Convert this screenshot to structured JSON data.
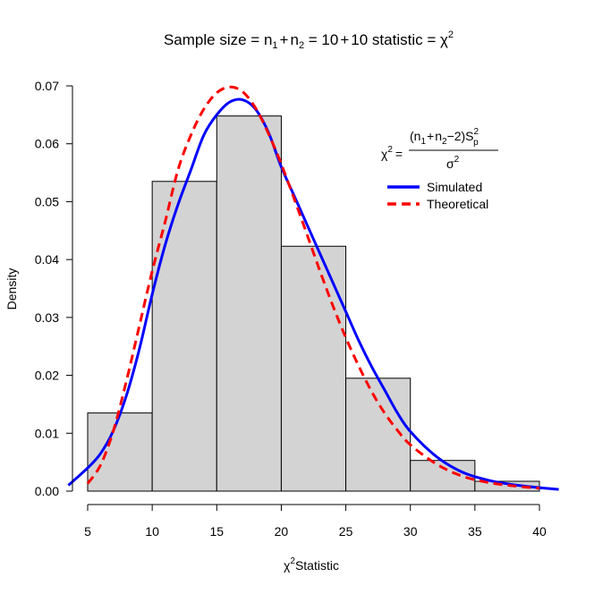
{
  "chart_data": {
    "type": "bar",
    "title_parts": {
      "lead": "Sample size = n",
      "sub1": "1",
      "plus1": "+",
      "n2": "n",
      "sub2": "2",
      "eq": " = 10",
      "plus2": "+",
      "tail": "10 statistic = χ",
      "sup": "2"
    },
    "xlabel": {
      "chi": "χ",
      "sup": "2",
      "text": "Statistic"
    },
    "ylabel": "Density",
    "xlim": [
      5,
      40
    ],
    "ylim": [
      0,
      0.07
    ],
    "x_ticks": [
      "5",
      "10",
      "15",
      "20",
      "25",
      "30",
      "35",
      "40"
    ],
    "y_ticks": [
      "0.00",
      "0.01",
      "0.02",
      "0.03",
      "0.04",
      "0.05",
      "0.06",
      "0.07"
    ],
    "histogram": {
      "bin_edges": [
        5,
        10,
        15,
        20,
        25,
        30,
        35,
        40
      ],
      "density": [
        0.0135,
        0.0535,
        0.0648,
        0.0423,
        0.0195,
        0.0053,
        0.0017
      ],
      "fill": "#d3d3d3",
      "stroke": "#000000"
    },
    "series": [
      {
        "name": "Simulated",
        "color": "#0000ff",
        "style": "solid",
        "x": [
          3.5,
          5,
          6,
          7,
          8,
          9,
          10,
          11,
          12,
          13,
          14,
          15,
          16,
          17,
          18,
          19,
          20,
          21,
          22,
          23,
          24,
          25,
          26,
          27,
          28,
          29,
          30,
          32,
          34,
          36,
          38,
          40,
          41.5
        ],
        "y": [
          0.001,
          0.004,
          0.0065,
          0.0105,
          0.0165,
          0.0245,
          0.034,
          0.0425,
          0.0495,
          0.0555,
          0.0615,
          0.065,
          0.0672,
          0.0676,
          0.066,
          0.062,
          0.056,
          0.051,
          0.046,
          0.041,
          0.036,
          0.031,
          0.026,
          0.0215,
          0.0175,
          0.0135,
          0.0103,
          0.006,
          0.0033,
          0.0019,
          0.0011,
          0.0006,
          0.0003
        ]
      },
      {
        "name": "Theoretical",
        "color": "#ff0000",
        "style": "dashed",
        "x": [
          5,
          6,
          7,
          8,
          9,
          10,
          11,
          12,
          13,
          14,
          15,
          16,
          17,
          18,
          19,
          20,
          21,
          22,
          23,
          24,
          25,
          26,
          27,
          28,
          29,
          30,
          32,
          34,
          36,
          38,
          40
        ],
        "y": [
          0.0013,
          0.0045,
          0.0105,
          0.019,
          0.0285,
          0.038,
          0.0465,
          0.0555,
          0.0615,
          0.066,
          0.0688,
          0.0698,
          0.069,
          0.0662,
          0.0618,
          0.0565,
          0.0505,
          0.0443,
          0.038,
          0.032,
          0.0265,
          0.0216,
          0.0172,
          0.0135,
          0.0105,
          0.008,
          0.0047,
          0.0026,
          0.0015,
          0.0009,
          0.0005
        ]
      }
    ],
    "legend": {
      "position": "top-right",
      "formula": {
        "lhs_chi": "χ",
        "lhs_sup": "2",
        "eq": "=",
        "num_open": "(n",
        "num_sub1": "1",
        "num_plus": "+",
        "num_n2": "n",
        "num_sub2": "2",
        "num_rest": "−2)S",
        "num_s_sub": "p",
        "num_s_sup": "2",
        "den": "σ",
        "den_sup": "2"
      },
      "entries": [
        "Simulated",
        "Theoretical"
      ]
    },
    "grid": false
  }
}
